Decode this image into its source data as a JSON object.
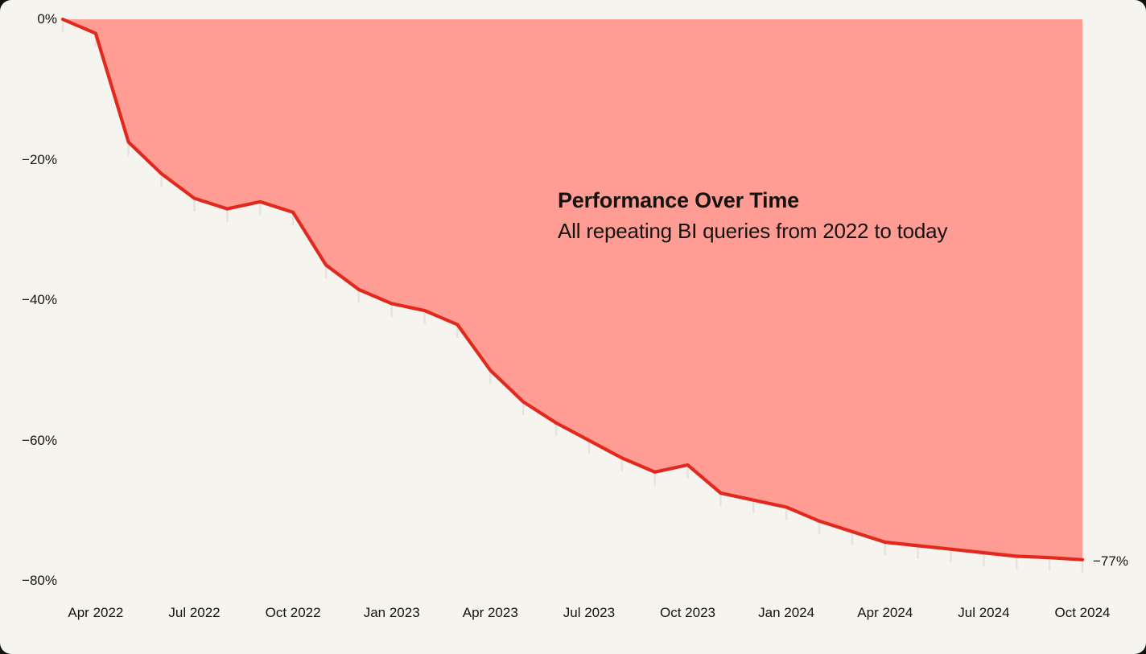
{
  "header": {
    "title": "Performance Over Time",
    "subtitle": "All repeating BI queries from 2022 to today"
  },
  "chart_data": {
    "type": "area",
    "title": "Performance Over Time",
    "subtitle": "All repeating BI queries from 2022 to today",
    "unit": "%",
    "x": [
      "Mar 2022",
      "Apr 2022",
      "May 2022",
      "Jun 2022",
      "Jul 2022",
      "Aug 2022",
      "Sep 2022",
      "Oct 2022",
      "Nov 2022",
      "Dec 2022",
      "Jan 2023",
      "Feb 2023",
      "Mar 2023",
      "Apr 2023",
      "May 2023",
      "Jun 2023",
      "Jul 2023",
      "Aug 2023",
      "Sep 2023",
      "Oct 2023",
      "Nov 2023",
      "Dec 2023",
      "Jan 2024",
      "Feb 2024",
      "Mar 2024",
      "Apr 2024",
      "May 2024",
      "Jun 2024",
      "Jul 2024",
      "Aug 2024",
      "Sep 2024",
      "Oct 2024"
    ],
    "values": [
      0,
      -2,
      -17.5,
      -22,
      -25.5,
      -27,
      -26,
      -27.5,
      -35,
      -38.5,
      -40.5,
      -41.5,
      -43.5,
      -50,
      -54.5,
      -57.5,
      -60,
      -62.5,
      -64.5,
      -63.5,
      -67.5,
      -68.5,
      -69.5,
      -71.5,
      -73,
      -74.5,
      -75,
      -75.5,
      -76,
      -76.5,
      -76.7,
      -77
    ],
    "ylim": [
      -80,
      0
    ],
    "y_tick_labels": [
      "0%",
      "−20%",
      "−40%",
      "−60%",
      "−80%"
    ],
    "y_tick_values": [
      0,
      -20,
      -40,
      -60,
      -80
    ],
    "x_tick_labels": [
      "Apr 2022",
      "Jul 2022",
      "Oct 2022",
      "Jan 2023",
      "Apr 2023",
      "Jul 2023",
      "Oct 2023",
      "Jan 2024",
      "Apr 2024",
      "Jul 2024",
      "Oct 2024"
    ],
    "x_tick_every_n_months": 3,
    "end_label": "−77%",
    "final_value": -77,
    "grid": false,
    "legend": false,
    "colors": {
      "line": "#E2291D",
      "fill": "#FF9C93",
      "point_tick": "#E6E3DD",
      "text": "#15130F",
      "card_background": "#F6F4EF",
      "outside_background": "#101010"
    }
  }
}
